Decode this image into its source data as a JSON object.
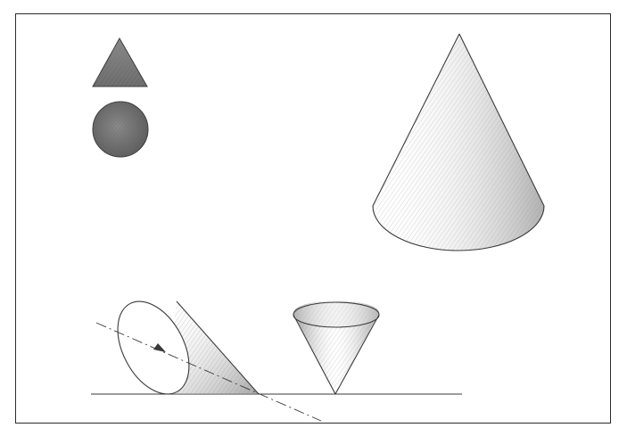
{
  "illustration": {
    "subject": "cones",
    "colors": {
      "ink": "#2e2e2e",
      "shading": "#7a7a7a",
      "paper": "#ffffff"
    },
    "icons": [
      "triangle-icon",
      "circle-icon"
    ]
  }
}
